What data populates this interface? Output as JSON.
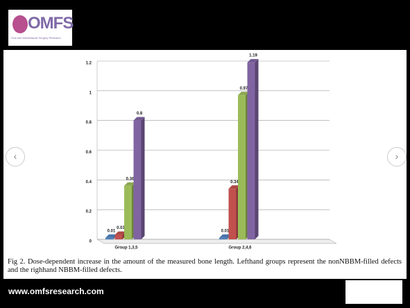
{
  "header": {
    "logo": "OMFS",
    "logo_subtitle": "Oral and Maxillofacial Surgery Research"
  },
  "chart_data": {
    "type": "bar",
    "categories": [
      "Group 1,3,5",
      "Group 2,4,6"
    ],
    "series": [
      {
        "color": "#4f81bd",
        "values": [
          0.01,
          0.01
        ]
      },
      {
        "color": "#c0504d",
        "values": [
          0.03,
          0.34
        ]
      },
      {
        "color": "#9bbb59",
        "values": [
          0.36,
          0.97
        ]
      },
      {
        "color": "#8064a2",
        "values": [
          0.8,
          1.19
        ]
      }
    ],
    "ylim": [
      0,
      1.2
    ],
    "yticks": [
      0,
      0.2,
      0.4,
      0.6,
      0.8,
      1,
      1.2
    ],
    "grid": true
  },
  "caption": "Fig 2. Dose-dependent increase in the amount of the measured bone length. Lefthand groups represent the nonNBBM-filled defects and the righhand NBBM-filled defects.",
  "footer": "www.omfsresearch.com"
}
